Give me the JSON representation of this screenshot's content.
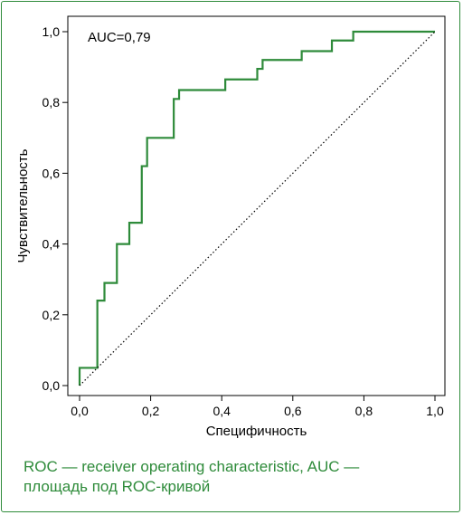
{
  "chart_data": {
    "type": "line",
    "annotation": "AUC=0,79",
    "xlabel": "Специфичность",
    "ylabel": "Чувствительность",
    "xlim": [
      0,
      1
    ],
    "ylim": [
      0,
      1
    ],
    "x_ticks": [
      "0,0",
      "0,2",
      "0,4",
      "0,6",
      "0,8",
      "1,0"
    ],
    "y_ticks": [
      "0,0",
      "0,2",
      "0,4",
      "0,6",
      "0,8",
      "1,0"
    ],
    "grid": false,
    "series": [
      {
        "color": "#2e8b3a",
        "style": "step",
        "points": [
          [
            0.0,
            0.0
          ],
          [
            0.0,
            0.05
          ],
          [
            0.05,
            0.05
          ],
          [
            0.05,
            0.24
          ],
          [
            0.07,
            0.24
          ],
          [
            0.07,
            0.29
          ],
          [
            0.105,
            0.29
          ],
          [
            0.105,
            0.4
          ],
          [
            0.14,
            0.4
          ],
          [
            0.14,
            0.46
          ],
          [
            0.175,
            0.46
          ],
          [
            0.175,
            0.62
          ],
          [
            0.19,
            0.62
          ],
          [
            0.19,
            0.7
          ],
          [
            0.265,
            0.7
          ],
          [
            0.265,
            0.81
          ],
          [
            0.28,
            0.81
          ],
          [
            0.28,
            0.835
          ],
          [
            0.41,
            0.835
          ],
          [
            0.41,
            0.865
          ],
          [
            0.5,
            0.865
          ],
          [
            0.5,
            0.895
          ],
          [
            0.515,
            0.895
          ],
          [
            0.515,
            0.92
          ],
          [
            0.625,
            0.92
          ],
          [
            0.625,
            0.945
          ],
          [
            0.71,
            0.945
          ],
          [
            0.71,
            0.975
          ],
          [
            0.77,
            0.975
          ],
          [
            0.77,
            1.0
          ],
          [
            1.0,
            1.0
          ]
        ]
      },
      {
        "color": "#000000",
        "style": "dotted",
        "points": [
          [
            0,
            0
          ],
          [
            1,
            1
          ]
        ]
      }
    ]
  },
  "caption": {
    "line1": "ROC — receiver operating characteristic, AUC —",
    "line2": "площадь под ROC-кривой"
  }
}
